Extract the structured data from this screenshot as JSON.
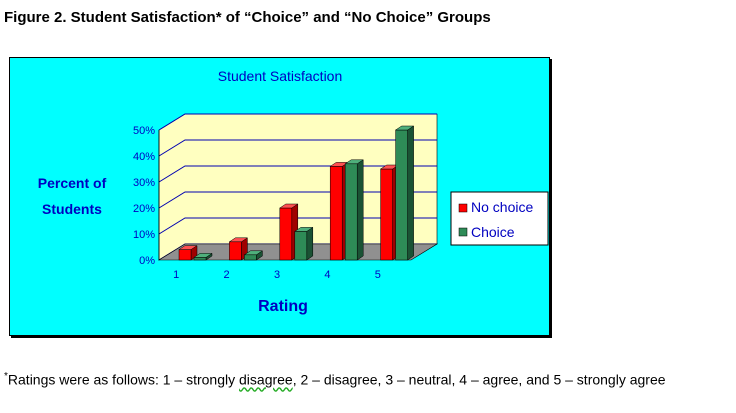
{
  "figure_title": "Figure 2.  Student Satisfaction* of “Choice” and “No Choice” Groups",
  "footnote": {
    "marker": "*",
    "text_before": "Ratings were as follows: 1 – strongly ",
    "flagged_word": "disagree",
    "text_after": ", 2 – disagree, 3 – neutral, 4 – agree, and 5 – strongly agree"
  },
  "chart_data": {
    "type": "bar",
    "title": "Student Satisfaction",
    "xlabel": "Rating",
    "ylabel_lines": [
      "Percent of",
      "Students"
    ],
    "categories": [
      "1",
      "2",
      "3",
      "4",
      "5"
    ],
    "y_ticks": [
      "0%",
      "10%",
      "20%",
      "30%",
      "40%",
      "50%"
    ],
    "ylim": [
      0,
      50
    ],
    "grid": true,
    "legend_position": "right",
    "series": [
      {
        "name": "No choice",
        "values": [
          4,
          7,
          20,
          36,
          35
        ],
        "color": "#ff0000",
        "dark": "#a00000",
        "light": "#ff5050"
      },
      {
        "name": "Choice",
        "values": [
          1,
          2,
          11,
          37,
          50
        ],
        "color": "#2e8b57",
        "dark": "#1a5234",
        "light": "#4fb07c"
      }
    ],
    "colors": {
      "background": "#00ffff",
      "plot_wall": "#ffffc0",
      "floor": "#909090",
      "grid": "#0000b0",
      "text": "#0000c0"
    }
  }
}
